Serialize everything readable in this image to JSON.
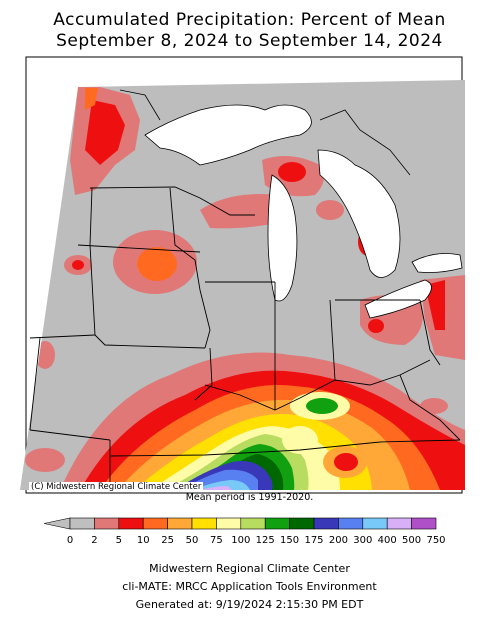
{
  "title_line1": "Accumulated Precipitation: Percent of Mean",
  "title_line2": "September 8, 2024 to September 14, 2024",
  "copyright": "(C) Midwestern Regional Climate Center",
  "mean_period": "Mean period is 1991-2020.",
  "legend": {
    "labels": [
      "0",
      "2",
      "5",
      "10",
      "25",
      "50",
      "75",
      "100",
      "125",
      "150",
      "175",
      "200",
      "300",
      "400",
      "500",
      "750"
    ],
    "colors": [
      "#bfbfbf",
      "#e07878",
      "#ee1010",
      "#ff6a20",
      "#ffa838",
      "#ffe000",
      "#fffca8",
      "#b8dc60",
      "#10a010",
      "#006800",
      "#3838b8",
      "#5880f0",
      "#78c8f8",
      "#d8b0f8",
      "#b050c8"
    ]
  },
  "footer": {
    "line1": "Midwestern Regional Climate Center",
    "line2": "cli-MATE: MRCC Application Tools Environment",
    "line3": "Generated at: 9/19/2024 2:15:30 PM EDT"
  }
}
